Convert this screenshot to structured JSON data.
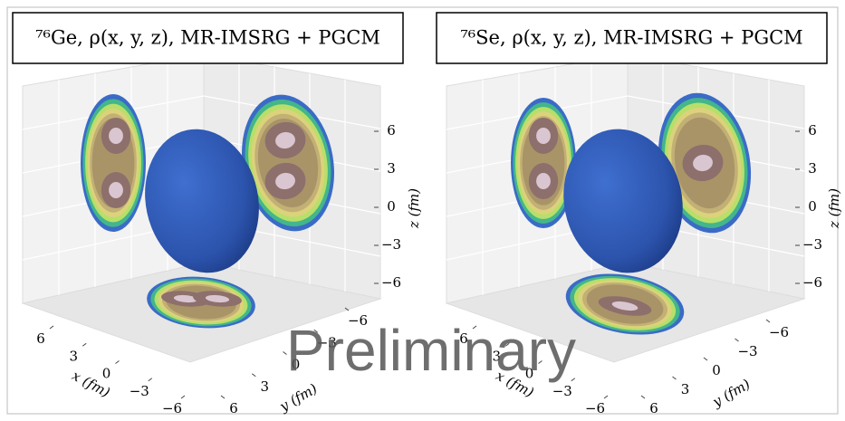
{
  "chart_data": [
    {
      "type": "surface3d",
      "title": "⁷⁶Ge, ρ(x, y, z), MR-IMSRG + PGCM",
      "xlabel": "x (fm)",
      "ylabel": "y (fm)",
      "zlabel": "z (fm)",
      "xticks": [
        {
          "value": 6,
          "label": "6"
        },
        {
          "value": 3,
          "label": "3"
        },
        {
          "value": 0,
          "label": "0"
        },
        {
          "value": -3,
          "label": "−3"
        },
        {
          "value": -6,
          "label": "−6"
        }
      ],
      "yticks": [
        {
          "value": -6,
          "label": "−6"
        },
        {
          "value": -3,
          "label": "−3"
        },
        {
          "value": 0,
          "label": "0"
        },
        {
          "value": 3,
          "label": "3"
        },
        {
          "value": 6,
          "label": "6"
        }
      ],
      "zticks": [
        {
          "value": 6,
          "label": "6"
        },
        {
          "value": 3,
          "label": "3"
        },
        {
          "value": 0,
          "label": "0"
        },
        {
          "value": -3,
          "label": "−3"
        },
        {
          "value": -6,
          "label": "−6"
        }
      ],
      "color": "#2f56b0"
    },
    {
      "type": "surface3d",
      "title": "⁷⁶Se, ρ(x, y, z), MR-IMSRG + PGCM",
      "xlabel": "x (fm)",
      "ylabel": "y (fm)",
      "zlabel": "z (fm)",
      "xticks": [
        {
          "value": 6,
          "label": "6"
        },
        {
          "value": 3,
          "label": "3"
        },
        {
          "value": 0,
          "label": "0"
        },
        {
          "value": -3,
          "label": "−3"
        },
        {
          "value": -6,
          "label": "−6"
        }
      ],
      "yticks": [
        {
          "value": -6,
          "label": "−6"
        },
        {
          "value": -3,
          "label": "−3"
        },
        {
          "value": 0,
          "label": "0"
        },
        {
          "value": 3,
          "label": "3"
        },
        {
          "value": 6,
          "label": "6"
        }
      ],
      "zticks": [
        {
          "value": 6,
          "label": "6"
        },
        {
          "value": 3,
          "label": "3"
        },
        {
          "value": 0,
          "label": "0"
        },
        {
          "value": -3,
          "label": "−3"
        },
        {
          "value": -6,
          "label": "−6"
        }
      ],
      "color": "#2f56b0"
    }
  ],
  "watermark": "Preliminary"
}
